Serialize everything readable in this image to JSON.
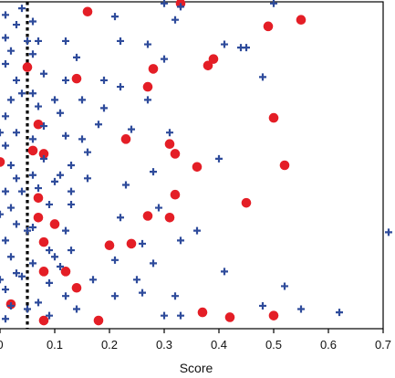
{
  "chart_data": {
    "type": "scatter",
    "title": "",
    "xlabel": "Score",
    "ylabel": "",
    "xlim": [
      0,
      0.7
    ],
    "ylim": [
      0,
      1
    ],
    "x_ticks": [
      0,
      0.1,
      0.2,
      0.3,
      0.4,
      0.5,
      0.6,
      0.7
    ],
    "x_tick_labels": [
      "0",
      "0.1",
      "0.2",
      "0.3",
      "0.4",
      "0.5",
      "0.6",
      "0.7"
    ],
    "grid": false,
    "legend": "none",
    "threshold": {
      "x": 0.05,
      "style": "dotted",
      "color": "#000000"
    },
    "series": [
      {
        "marker": "circle",
        "color": "#e41e26",
        "points": [
          [
            0.16,
            0.97
          ],
          [
            0.33,
            0.995
          ],
          [
            0.49,
            0.925
          ],
          [
            0.55,
            0.945
          ],
          [
            0.05,
            0.8
          ],
          [
            0.14,
            0.765
          ],
          [
            0.27,
            0.74
          ],
          [
            0.28,
            0.795
          ],
          [
            0.38,
            0.805
          ],
          [
            0.39,
            0.825
          ],
          [
            0.07,
            0.625
          ],
          [
            0.5,
            0.645
          ],
          [
            0.0,
            0.51
          ],
          [
            0.06,
            0.545
          ],
          [
            0.08,
            0.535
          ],
          [
            0.23,
            0.58
          ],
          [
            0.31,
            0.565
          ],
          [
            0.32,
            0.535
          ],
          [
            0.36,
            0.495
          ],
          [
            0.52,
            0.5
          ],
          [
            0.07,
            0.4
          ],
          [
            0.32,
            0.41
          ],
          [
            0.27,
            0.345
          ],
          [
            0.31,
            0.34
          ],
          [
            0.45,
            0.385
          ],
          [
            0.07,
            0.34
          ],
          [
            0.1,
            0.32
          ],
          [
            0.08,
            0.265
          ],
          [
            0.2,
            0.255
          ],
          [
            0.24,
            0.26
          ],
          [
            0.08,
            0.175
          ],
          [
            0.12,
            0.175
          ],
          [
            0.14,
            0.125
          ],
          [
            0.02,
            0.075
          ],
          [
            0.08,
            0.025
          ],
          [
            0.18,
            0.025
          ],
          [
            0.37,
            0.05
          ],
          [
            0.42,
            0.035
          ],
          [
            0.5,
            0.04
          ]
        ]
      },
      {
        "marker": "plus",
        "color": "#2e4b9b",
        "points": [
          [
            0.3,
            0.995
          ],
          [
            0.33,
            0.985
          ],
          [
            0.5,
            0.995
          ],
          [
            0.21,
            0.955
          ],
          [
            0.32,
            0.945
          ],
          [
            0.22,
            0.88
          ],
          [
            0.27,
            0.87
          ],
          [
            0.41,
            0.87
          ],
          [
            0.44,
            0.86
          ],
          [
            0.45,
            0.86
          ],
          [
            0.3,
            0.825
          ],
          [
            0.48,
            0.77
          ],
          [
            0.19,
            0.76
          ],
          [
            0.22,
            0.74
          ],
          [
            0.15,
            0.7
          ],
          [
            0.19,
            0.675
          ],
          [
            0.27,
            0.7
          ],
          [
            0.18,
            0.625
          ],
          [
            0.24,
            0.61
          ],
          [
            0.31,
            0.6
          ],
          [
            0.16,
            0.54
          ],
          [
            0.28,
            0.48
          ],
          [
            0.4,
            0.52
          ],
          [
            0.16,
            0.46
          ],
          [
            0.23,
            0.44
          ],
          [
            0.22,
            0.34
          ],
          [
            0.29,
            0.37
          ],
          [
            0.36,
            0.3
          ],
          [
            0.26,
            0.26
          ],
          [
            0.33,
            0.27
          ],
          [
            0.21,
            0.21
          ],
          [
            0.28,
            0.2
          ],
          [
            0.17,
            0.15
          ],
          [
            0.25,
            0.15
          ],
          [
            0.41,
            0.175
          ],
          [
            0.52,
            0.13
          ],
          [
            0.21,
            0.1
          ],
          [
            0.26,
            0.11
          ],
          [
            0.32,
            0.1
          ],
          [
            0.3,
            0.04
          ],
          [
            0.33,
            0.04
          ],
          [
            0.48,
            0.07
          ],
          [
            0.55,
            0.06
          ],
          [
            0.62,
            0.05
          ],
          [
            0.71,
            0.295
          ],
          [
            0.12,
            0.88
          ],
          [
            0.14,
            0.83
          ],
          [
            0.12,
            0.76
          ],
          [
            0.11,
            0.66
          ],
          [
            0.12,
            0.59
          ],
          [
            0.15,
            0.58
          ],
          [
            0.13,
            0.5
          ],
          [
            0.11,
            0.47
          ],
          [
            0.13,
            0.42
          ],
          [
            0.13,
            0.38
          ],
          [
            0.12,
            0.3
          ],
          [
            0.13,
            0.24
          ],
          [
            0.11,
            0.19
          ],
          [
            0.12,
            0.1
          ],
          [
            0.14,
            0.06
          ],
          [
            0.01,
            0.96
          ],
          [
            0.03,
            0.93
          ],
          [
            0.01,
            0.89
          ],
          [
            0.02,
            0.85
          ],
          [
            0.01,
            0.81
          ],
          [
            0.03,
            0.76
          ],
          [
            0.02,
            0.7
          ],
          [
            0.01,
            0.65
          ],
          [
            0.03,
            0.6
          ],
          [
            0.01,
            0.56
          ],
          [
            0.02,
            0.5
          ],
          [
            0.03,
            0.46
          ],
          [
            0.01,
            0.42
          ],
          [
            0.02,
            0.37
          ],
          [
            0.03,
            0.32
          ],
          [
            0.01,
            0.27
          ],
          [
            0.02,
            0.22
          ],
          [
            0.03,
            0.17
          ],
          [
            0.01,
            0.12
          ],
          [
            0.02,
            0.07
          ],
          [
            0.01,
            0.03
          ],
          [
            0.06,
            0.94
          ],
          [
            0.07,
            0.88
          ],
          [
            0.06,
            0.84
          ],
          [
            0.08,
            0.78
          ],
          [
            0.06,
            0.72
          ],
          [
            0.07,
            0.68
          ],
          [
            0.08,
            0.62
          ],
          [
            0.06,
            0.58
          ],
          [
            0.08,
            0.52
          ],
          [
            0.06,
            0.47
          ],
          [
            0.07,
            0.43
          ],
          [
            0.09,
            0.38
          ],
          [
            0.06,
            0.31
          ],
          [
            0.09,
            0.24
          ],
          [
            0.06,
            0.2
          ],
          [
            0.09,
            0.14
          ],
          [
            0.07,
            0.08
          ],
          [
            0.09,
            0.04
          ],
          [
            0.04,
            0.98
          ],
          [
            0.04,
            0.72
          ],
          [
            0.04,
            0.42
          ],
          [
            0.04,
            0.16
          ],
          [
            0.1,
            0.7
          ],
          [
            0.1,
            0.45
          ],
          [
            0.1,
            0.22
          ],
          [
            0.0,
            0.6
          ],
          [
            0.0,
            0.35
          ],
          [
            0.0,
            0.15
          ],
          [
            0.05,
            0.88
          ],
          [
            0.05,
            0.3
          ],
          [
            0.05,
            0.06
          ]
        ]
      }
    ]
  }
}
